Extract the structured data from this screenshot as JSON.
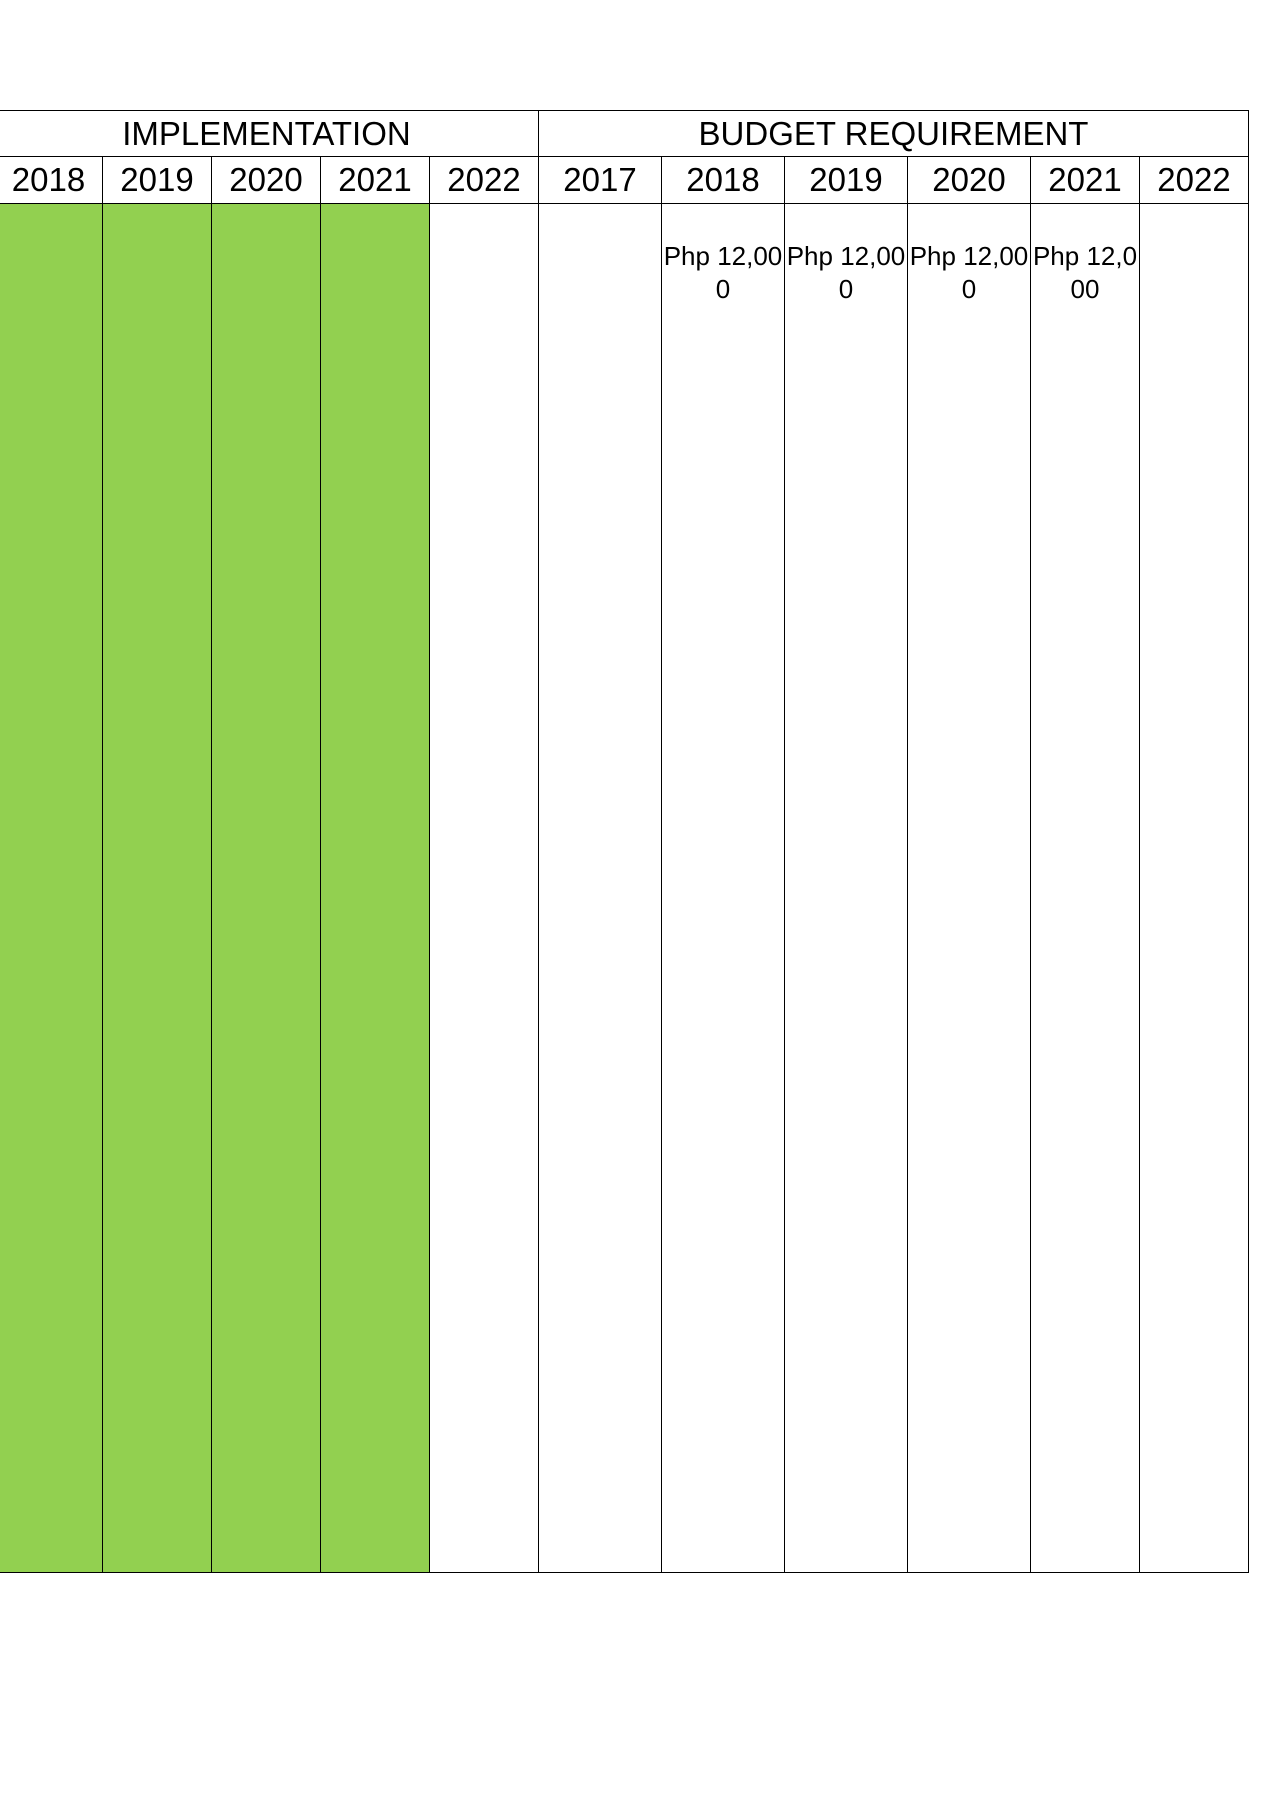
{
  "headers": {
    "implementation": "IMPLEMENTATION",
    "budget": "BUDGET REQUIREMENT"
  },
  "implementation_years": [
    "2018",
    "2019",
    "2020",
    "2021",
    "2022"
  ],
  "budget_years": [
    "2017",
    "2018",
    "2019",
    "2020",
    "2021",
    "2022"
  ],
  "implementation_status": [
    true,
    true,
    true,
    true,
    false
  ],
  "fill_color": "#92d050",
  "budget_amounts": [
    "",
    "Php 12,000",
    "Php 12,000",
    "Php 12,000",
    "Php 12,000",
    ""
  ]
}
